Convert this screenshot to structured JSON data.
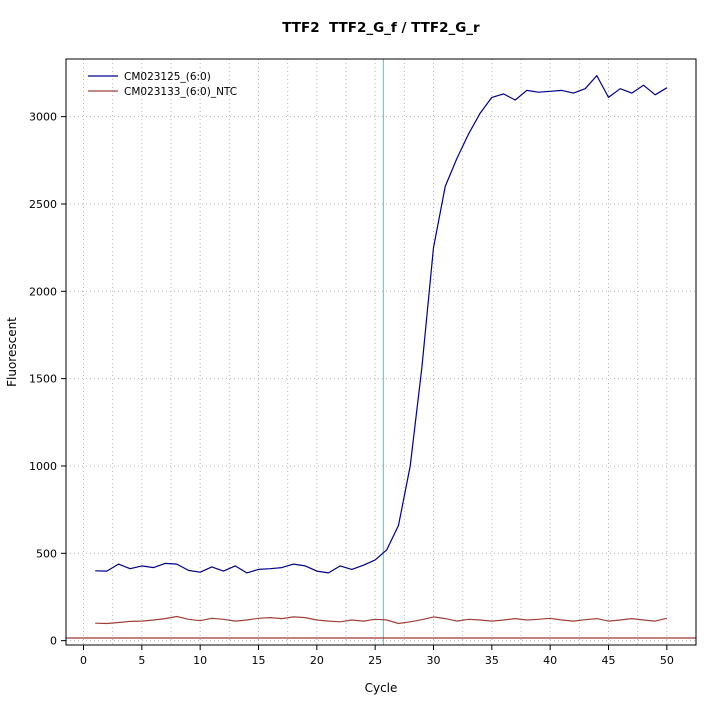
{
  "chart_data": {
    "type": "line",
    "title": "TTF2  TTF2_G_f / TTF2_G_r",
    "xlabel": "Cycle",
    "ylabel": "Fluorescent",
    "x_range": [
      -1.5,
      52.5
    ],
    "y_range": [
      -25,
      3330
    ],
    "x_ticks": [
      0,
      5,
      10,
      15,
      20,
      25,
      30,
      35,
      40,
      45,
      50
    ],
    "y_ticks": [
      0,
      500,
      1000,
      1500,
      2000,
      2500,
      3000
    ],
    "grid": {
      "x_step": 2.5,
      "y_step": 500,
      "color": "#b8b8b8",
      "style": "dotted"
    },
    "legend_position": "top-left",
    "x": [
      1,
      2,
      3,
      4,
      5,
      6,
      7,
      8,
      9,
      10,
      11,
      12,
      13,
      14,
      15,
      16,
      17,
      18,
      19,
      20,
      21,
      22,
      23,
      24,
      25,
      26,
      27,
      28,
      29,
      30,
      31,
      32,
      33,
      34,
      35,
      36,
      37,
      38,
      39,
      40,
      41,
      42,
      43,
      44,
      45,
      46,
      47,
      48,
      49,
      50
    ],
    "series": [
      {
        "name": "CM023125_(6:0)",
        "color": "#00008B",
        "values": [
          400,
          398,
          438,
          412,
          428,
          418,
          442,
          438,
          402,
          392,
          422,
          398,
          428,
          388,
          408,
          412,
          418,
          438,
          428,
          398,
          388,
          428,
          408,
          432,
          462,
          520,
          660,
          1000,
          1560,
          2250,
          2600,
          2760,
          2900,
          3020,
          3110,
          3130,
          3095,
          3150,
          3140,
          3145,
          3150,
          3135,
          3160,
          3235,
          3110,
          3160,
          3135,
          3180,
          3125,
          3165
        ]
      },
      {
        "name": "CM023133_(6:0)_NTC",
        "color": "#A0403A",
        "values": [
          100,
          98,
          104,
          110,
          112,
          118,
          126,
          138,
          122,
          114,
          128,
          122,
          112,
          118,
          128,
          132,
          126,
          136,
          132,
          118,
          112,
          108,
          118,
          112,
          122,
          118,
          98,
          108,
          120,
          136,
          126,
          112,
          122,
          118,
          112,
          118,
          126,
          118,
          122,
          128,
          118,
          112,
          120,
          126,
          112,
          118,
          126,
          118,
          112,
          128
        ]
      }
    ],
    "threshold_line": {
      "y": 15,
      "color": "#8B0000"
    },
    "ct_line": {
      "x": 25.7,
      "color": "#00E5EE"
    }
  }
}
